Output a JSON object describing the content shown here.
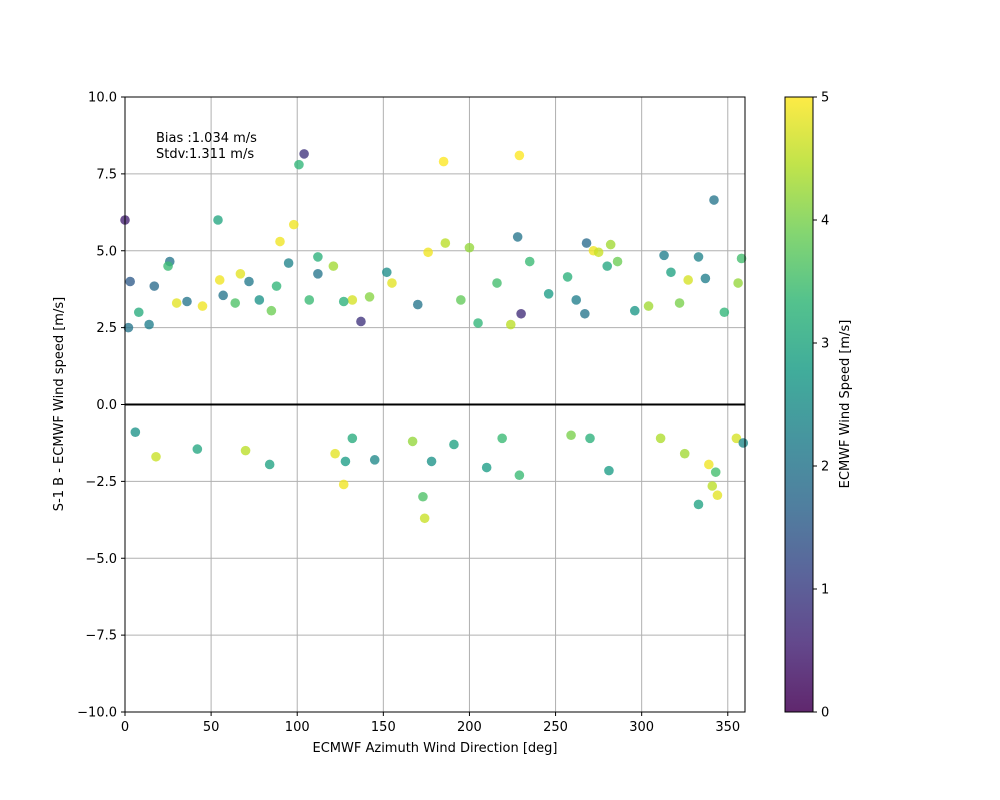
{
  "chart_data": {
    "type": "scatter",
    "title": "",
    "xlabel": "ECMWF Azimuth Wind Direction [deg]",
    "ylabel": "S-1 B - ECMWF Wind speed [m/s]",
    "xlim": [
      0,
      360
    ],
    "ylim": [
      -10,
      10
    ],
    "xticks": [
      "0",
      "50",
      "100",
      "150",
      "200",
      "250",
      "300",
      "350"
    ],
    "yticks": [
      "−10.0",
      "−7.5",
      "−5.0",
      "−2.5",
      "0.0",
      "2.5",
      "5.0",
      "7.5",
      "10.0"
    ],
    "grid": true,
    "zero_line": 0,
    "annotation": {
      "bias": "Bias :1.034 m/s",
      "stdv": "Stdv:1.311 m/s"
    },
    "colorbar": {
      "label": "ECMWF Wind Speed [m/s]",
      "range": [
        0,
        5
      ],
      "ticks": [
        "0",
        "1",
        "2",
        "3",
        "4",
        "5"
      ],
      "colormap": "viridis"
    },
    "colors": {
      "viridis": [
        "#440154",
        "#482878",
        "#3e4989",
        "#31688e",
        "#26828e",
        "#1f9e89",
        "#35b779",
        "#6ece58",
        "#b5de2b",
        "#fde725"
      ]
    },
    "points": [
      [
        0,
        6.0,
        0.5
      ],
      [
        3,
        4.0,
        1.5
      ],
      [
        17,
        3.85,
        1.8
      ],
      [
        26,
        4.65,
        2.0
      ],
      [
        25,
        4.5,
        3.4
      ],
      [
        54,
        6.0,
        3.0
      ],
      [
        101,
        7.8,
        3.3
      ],
      [
        104,
        8.15,
        0.8
      ],
      [
        185,
        7.9,
        5.0
      ],
      [
        229,
        8.1,
        5.0
      ],
      [
        98,
        5.85,
        4.9
      ],
      [
        90,
        5.3,
        4.9
      ],
      [
        95,
        4.6,
        2.3
      ],
      [
        112,
        4.8,
        3.2
      ],
      [
        112,
        4.25,
        2.0
      ],
      [
        121,
        4.5,
        4.3
      ],
      [
        137,
        2.7,
        0.8
      ],
      [
        152,
        4.3,
        2.5
      ],
      [
        155,
        3.95,
        4.8
      ],
      [
        176,
        4.95,
        4.9
      ],
      [
        186,
        5.25,
        4.5
      ],
      [
        200,
        5.1,
        4.2
      ],
      [
        216,
        3.95,
        3.5
      ],
      [
        228,
        5.45,
        2.0
      ],
      [
        230,
        2.95,
        0.7
      ],
      [
        235,
        4.65,
        3.4
      ],
      [
        257,
        4.15,
        3.2
      ],
      [
        268,
        5.25,
        1.8
      ],
      [
        272,
        5.0,
        4.9
      ],
      [
        275,
        4.95,
        4.6
      ],
      [
        282,
        5.2,
        4.3
      ],
      [
        280,
        4.5,
        3.0
      ],
      [
        286,
        4.65,
        3.9
      ],
      [
        313,
        4.85,
        2.2
      ],
      [
        317,
        4.3,
        2.9
      ],
      [
        327,
        4.05,
        4.7
      ],
      [
        333,
        4.8,
        2.3
      ],
      [
        337,
        4.1,
        2.2
      ],
      [
        342,
        6.65,
        2.0
      ],
      [
        348,
        3.0,
        3.3
      ],
      [
        356,
        3.95,
        4.2
      ],
      [
        358,
        4.75,
        3.5
      ],
      [
        55,
        4.05,
        4.9
      ],
      [
        67,
        4.25,
        4.8
      ],
      [
        72,
        4.0,
        2.1
      ],
      [
        88,
        3.85,
        3.3
      ],
      [
        132,
        3.4,
        4.7
      ],
      [
        142,
        3.5,
        4.1
      ],
      [
        2,
        2.5,
        2.0
      ],
      [
        8,
        3.0,
        3.1
      ],
      [
        14,
        2.6,
        2.2
      ],
      [
        30,
        3.3,
        4.8
      ],
      [
        36,
        3.35,
        2.0
      ],
      [
        45,
        3.2,
        4.9
      ],
      [
        57,
        3.55,
        2.0
      ],
      [
        64,
        3.3,
        3.6
      ],
      [
        78,
        3.4,
        2.6
      ],
      [
        85,
        3.05,
        3.9
      ],
      [
        107,
        3.4,
        3.4
      ],
      [
        127,
        3.35,
        3.2
      ],
      [
        170,
        3.25,
        2.0
      ],
      [
        195,
        3.4,
        3.8
      ],
      [
        205,
        2.65,
        3.3
      ],
      [
        224,
        2.6,
        4.5
      ],
      [
        246,
        3.6,
        2.8
      ],
      [
        262,
        3.4,
        2.2
      ],
      [
        267,
        2.95,
        2.0
      ],
      [
        296,
        3.05,
        2.7
      ],
      [
        304,
        3.2,
        4.3
      ],
      [
        322,
        3.3,
        4.0
      ],
      [
        127,
        -2.6,
        4.9
      ],
      [
        84,
        -1.95,
        2.9
      ],
      [
        173,
        -3.0,
        3.6
      ],
      [
        174,
        -3.7,
        4.6
      ],
      [
        178,
        -1.85,
        2.6
      ],
      [
        210,
        -2.05,
        2.8
      ],
      [
        229,
        -2.3,
        3.4
      ],
      [
        281,
        -2.15,
        2.8
      ],
      [
        333,
        -3.25,
        2.9
      ],
      [
        339,
        -1.95,
        4.9
      ],
      [
        341,
        -2.65,
        4.5
      ],
      [
        344,
        -2.95,
        4.8
      ],
      [
        343,
        -2.2,
        3.5
      ],
      [
        18,
        -1.7,
        4.6
      ],
      [
        42,
        -1.45,
        3.0
      ],
      [
        70,
        -1.5,
        4.5
      ],
      [
        122,
        -1.6,
        4.8
      ],
      [
        128,
        -1.85,
        2.8
      ],
      [
        132,
        -1.1,
        3.1
      ],
      [
        145,
        -1.8,
        2.4
      ],
      [
        167,
        -1.2,
        4.2
      ],
      [
        191,
        -1.3,
        2.9
      ],
      [
        219,
        -1.1,
        3.4
      ],
      [
        259,
        -1.0,
        4.0
      ],
      [
        270,
        -1.1,
        3.2
      ],
      [
        311,
        -1.1,
        4.4
      ],
      [
        325,
        -1.6,
        4.3
      ],
      [
        355,
        -1.1,
        4.7
      ],
      [
        359,
        -1.25,
        2.4
      ],
      [
        6,
        -0.9,
        2.6
      ]
    ]
  }
}
